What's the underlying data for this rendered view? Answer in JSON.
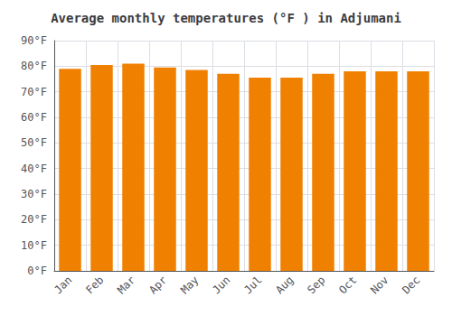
{
  "chart_data": {
    "type": "bar",
    "title": "Average monthly temperatures (°F ) in Adjumani",
    "categories": [
      "Jan",
      "Feb",
      "Mar",
      "Apr",
      "May",
      "Jun",
      "Jul",
      "Aug",
      "Sep",
      "Oct",
      "Nov",
      "Dec"
    ],
    "values": [
      79.0,
      80.5,
      81.0,
      79.5,
      78.5,
      77.0,
      75.5,
      75.5,
      77.0,
      78.0,
      78.0,
      78.0
    ],
    "color": "#F08000",
    "ylim": [
      0,
      90
    ],
    "yticks": [
      {
        "value": 0,
        "label": "0°F"
      },
      {
        "value": 10,
        "label": "10°F"
      },
      {
        "value": 20,
        "label": "20°F"
      },
      {
        "value": 30,
        "label": "30°F"
      },
      {
        "value": 40,
        "label": "40°F"
      },
      {
        "value": 50,
        "label": "50°F"
      },
      {
        "value": 60,
        "label": "60°F"
      },
      {
        "value": 70,
        "label": "70°F"
      },
      {
        "value": 80,
        "label": "80°F"
      },
      {
        "value": 90,
        "label": "90°F"
      }
    ],
    "grid": true
  }
}
